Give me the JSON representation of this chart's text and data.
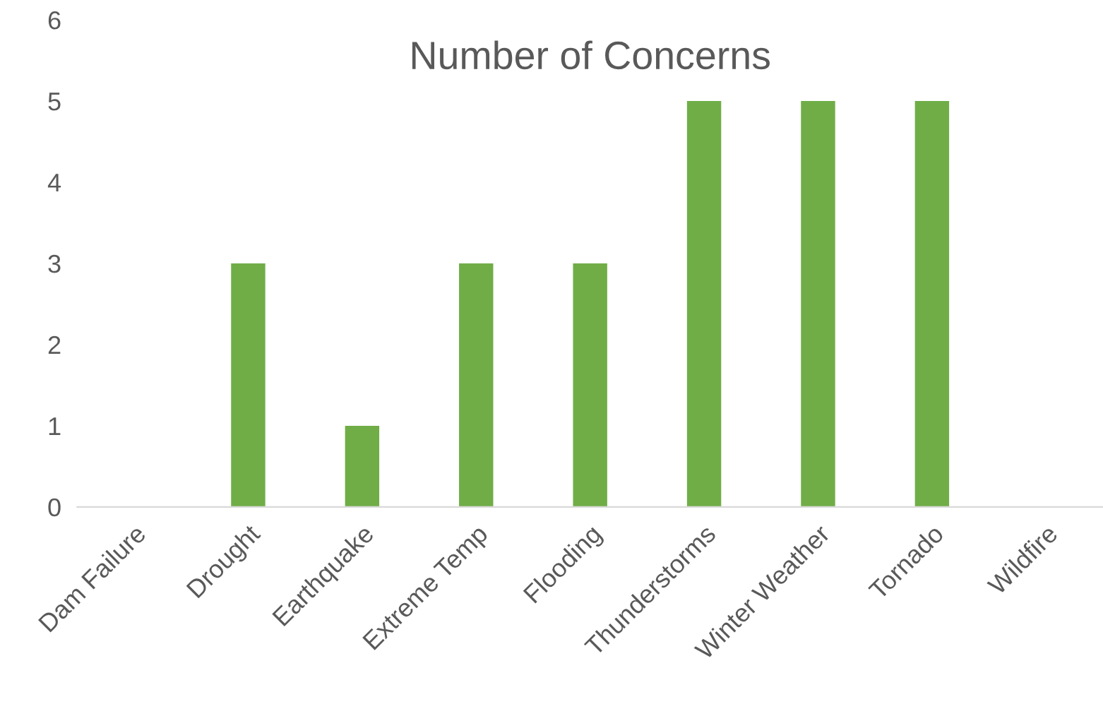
{
  "chart_data": {
    "type": "bar",
    "title": "Number of Concerns",
    "categories": [
      "Dam Failure",
      "Drought",
      "Earthquake",
      "Extreme Temp",
      "Flooding",
      "Thunderstorms",
      "Winter Weather",
      "Tornado",
      "Wildfire"
    ],
    "values": [
      0,
      3,
      1,
      3,
      3,
      5,
      5,
      5,
      0
    ],
    "color": "#70ad47",
    "ylim": [
      0,
      6
    ],
    "yticks": [
      0,
      1,
      2,
      3,
      4,
      5,
      6
    ],
    "grid": false,
    "legend": false
  }
}
